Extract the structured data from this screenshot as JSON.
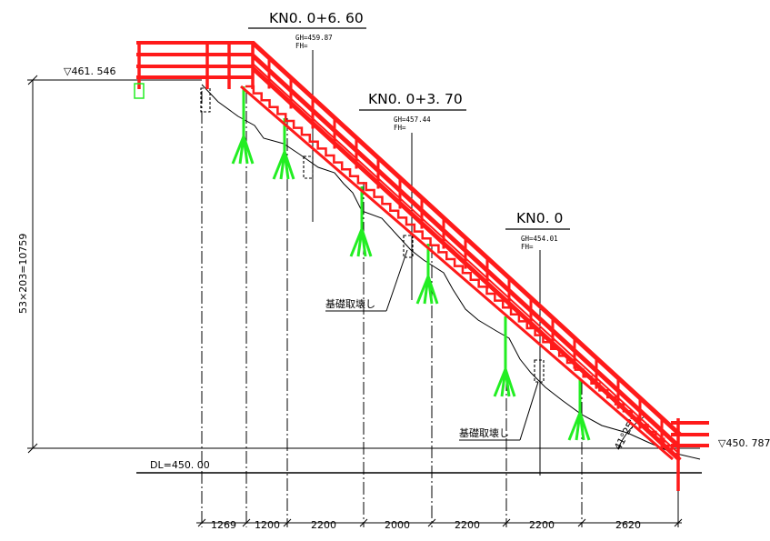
{
  "stations": [
    {
      "label": "KN0. 0+6. 60",
      "gh": "GH=459.87",
      "fh": "FH="
    },
    {
      "label": "KN0. 0+3. 70",
      "gh": "GH=457.44",
      "fh": "FH="
    },
    {
      "label": "KN0. 0",
      "gh": "GH=454.01",
      "fh": "FH="
    }
  ],
  "elevations": {
    "top": "▽461. 546",
    "bottom": "▽450. 787",
    "datum": "DL=450. 00"
  },
  "vertical_dimension": "53×203=10759",
  "notes": [
    "基礎取壊し",
    "基礎取壊し"
  ],
  "angle_label": "41°25'",
  "horizontal_dimensions": [
    "1269",
    "1200",
    "2200",
    "2000",
    "2200",
    "2200",
    "2620"
  ],
  "colors": {
    "handrail": "#ff1a1a",
    "piles": "#22ee22",
    "lines": "#000000"
  }
}
